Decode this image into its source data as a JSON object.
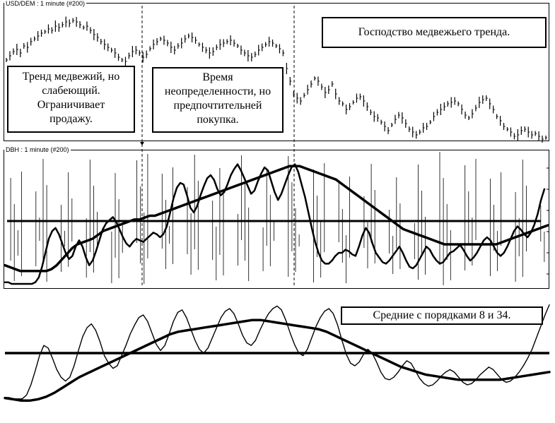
{
  "panels": {
    "top_title": "USD/DEM : 1 minute (#200)",
    "middle_title": "DBH : 1 minute (#200)"
  },
  "annotations": {
    "box1": [
      "Тренд медвежий, но",
      "слабеющий.",
      "Ограничивает",
      "продажу."
    ],
    "box2": [
      "Время",
      "неопределенности, но",
      "предпочтительней",
      "покупка."
    ],
    "box3": "Господство медвежьего тренда.",
    "box4": "Средние с порядками 8 и 34."
  },
  "chart_data": [
    {
      "type": "line",
      "title": "USD/DEM : 1 minute (#200)",
      "series": [
        {
          "values": [
            70,
            64,
            58,
            55,
            60,
            50,
            52,
            44,
            40,
            36,
            32,
            30,
            26,
            28,
            22,
            24,
            20,
            16,
            18,
            14,
            16,
            20,
            24,
            22,
            28,
            34,
            38,
            44,
            48,
            52,
            56,
            60,
            66,
            70,
            72,
            64,
            58,
            56,
            60,
            66,
            62,
            54,
            48,
            44,
            40,
            42,
            46,
            52,
            56,
            50,
            46,
            40,
            36,
            38,
            42,
            48,
            52,
            56,
            60,
            58,
            52,
            48,
            46,
            44,
            42,
            46,
            50,
            56,
            60,
            64,
            66,
            62,
            56,
            52,
            48,
            44,
            46,
            50,
            54,
            60,
            82,
            100,
            118,
            124,
            128,
            120,
            112,
            104,
            96,
            100,
            108,
            116,
            112,
            104,
            118,
            128,
            132,
            140,
            136,
            130,
            124,
            122,
            128,
            136,
            144,
            150,
            152,
            158,
            164,
            170,
            162,
            154,
            148,
            152,
            160,
            168,
            172,
            176,
            172,
            166,
            164,
            158,
            150,
            144,
            140,
            136,
            132,
            130,
            128,
            132,
            140,
            148,
            152,
            146,
            138,
            130,
            126,
            124,
            132,
            140,
            150,
            156,
            164,
            168,
            172,
            178,
            176,
            170,
            168,
            172,
            176,
            174,
            178,
            182,
            180
          ]
        }
      ]
    },
    {
      "type": "line",
      "title": "DBH : 1 minute (#200)",
      "series": [
        {
          "values": [
            2,
            2,
            0,
            0,
            0,
            0,
            0,
            0,
            0,
            2,
            8,
            22,
            40,
            58,
            68,
            72,
            64,
            52,
            40,
            32,
            36,
            48,
            56,
            48,
            34,
            24,
            30,
            42,
            56,
            70,
            78,
            82,
            86,
            80,
            70,
            60,
            52,
            48,
            54,
            58,
            56,
            54,
            58,
            62,
            66,
            64,
            60,
            64,
            74,
            92,
            110,
            124,
            130,
            128,
            114,
            98,
            92,
            100,
            114,
            126,
            136,
            140,
            134,
            122,
            114,
            118,
            128,
            140,
            148,
            154,
            146,
            136,
            126,
            116,
            120,
            132,
            142,
            150,
            146,
            132,
            118,
            108,
            116,
            128,
            140,
            150,
            154,
            144,
            128,
            112,
            92,
            72,
            54,
            40,
            30,
            26,
            26,
            30,
            36,
            40,
            40,
            44,
            42,
            38,
            36,
            48,
            62,
            72,
            66,
            52,
            40,
            34,
            28,
            26,
            30,
            36,
            42,
            48,
            40,
            30,
            22,
            20,
            24,
            32,
            40,
            48,
            44,
            36,
            30,
            26,
            28,
            34,
            40,
            42,
            46,
            50,
            44,
            36,
            30,
            34,
            40,
            48,
            56,
            60,
            56,
            48,
            40,
            36,
            40,
            48,
            58,
            68,
            74,
            70,
            64,
            60,
            66,
            76,
            90,
            108,
            122
          ]
        },
        {
          "values": [
            18,
            16,
            14,
            12,
            12,
            12,
            12,
            12,
            12,
            14,
            18,
            24,
            30,
            36,
            40,
            42,
            44,
            46,
            50,
            54,
            56,
            58,
            60,
            62,
            64,
            66,
            66,
            68,
            70,
            70,
            72,
            74,
            76,
            78,
            80,
            82,
            84,
            86,
            88,
            90,
            92,
            94,
            96,
            98,
            100,
            102,
            104,
            106,
            108,
            110,
            112,
            114,
            116,
            118,
            120,
            122,
            122,
            122,
            120,
            118,
            116,
            114,
            112,
            110,
            108,
            104,
            100,
            96,
            92,
            88,
            84,
            80,
            76,
            72,
            68,
            64,
            60,
            56,
            54,
            52,
            50,
            48,
            46,
            44,
            42,
            40,
            40,
            40,
            40,
            40,
            40,
            40,
            40,
            40,
            40,
            40,
            42,
            44,
            46,
            48,
            50,
            52,
            54,
            56,
            58,
            60
          ]
        }
      ]
    },
    {
      "type": "line",
      "title": "Средние с порядками 8 и 34.",
      "series": [
        {
          "values": [
            30,
            30,
            28,
            28,
            28,
            34,
            50,
            72,
            96,
            112,
            108,
            92,
            74,
            62,
            56,
            62,
            80,
            104,
            126,
            140,
            146,
            136,
            118,
            96,
            84,
            76,
            80,
            96,
            112,
            130,
            144,
            156,
            160,
            150,
            132,
            114,
            104,
            112,
            130,
            150,
            164,
            168,
            156,
            138,
            120,
            106,
            100,
            108,
            124,
            140,
            156,
            166,
            170,
            162,
            146,
            128,
            116,
            112,
            120,
            136,
            150,
            162,
            170,
            174,
            168,
            152,
            132,
            114,
            100,
            96,
            106,
            124,
            142,
            156,
            166,
            170,
            162,
            144,
            120,
            98,
            84,
            80,
            86,
            98,
            106,
            100,
            86,
            70,
            60,
            58,
            62,
            70,
            80,
            88,
            84,
            72,
            60,
            52,
            48,
            50,
            56,
            64,
            70,
            74,
            70,
            62,
            54,
            50,
            52,
            58,
            66,
            72,
            78,
            74,
            66,
            58,
            54,
            56,
            62,
            70,
            80,
            92,
            106,
            124,
            142,
            160,
            176
          ]
        },
        {
          "values": [
            20,
            18,
            16,
            16,
            18,
            22,
            28,
            36,
            44,
            52,
            58,
            64,
            70,
            76,
            82,
            88,
            94,
            100,
            106,
            112,
            118,
            122,
            124,
            126,
            128,
            130,
            132,
            134,
            136,
            138,
            140,
            140,
            138,
            136,
            134,
            132,
            130,
            128,
            126,
            122,
            116,
            110,
            104,
            98,
            92,
            86,
            80,
            74,
            68,
            64,
            60,
            56,
            54,
            52,
            50,
            48,
            48,
            48,
            48,
            48,
            48,
            50,
            52,
            54,
            56,
            58,
            60
          ]
        }
      ]
    }
  ]
}
